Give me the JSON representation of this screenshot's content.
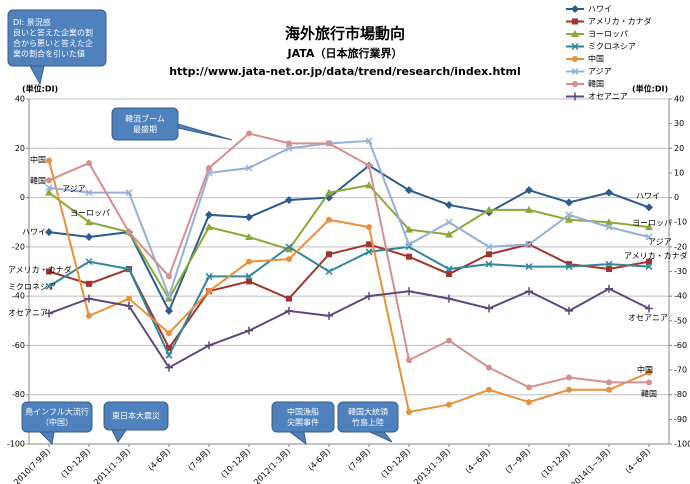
{
  "chart_data": {
    "type": "line",
    "title": "海外旅行市場動向",
    "subtitle": "JATA（日本旅行業界）",
    "source": "http://www.jata-net.or.jp/data/trend/research/index.html",
    "y_label": "(単位:DI)",
    "y2_label": "(単位:DI)",
    "categories": [
      "2010(7-9月)",
      "(10-12月)",
      "2011(1-3月)",
      "(4-6月)",
      "(7-9月)",
      "(10-12月)",
      "2012(1-3月)",
      "(4-6月)",
      "(7-9月)",
      "(10-12月)",
      "2013(1-3月)",
      "(4~6月)",
      "(7~9月)",
      "(10-12月)",
      "2014(1~3月)",
      "(4~6月)"
    ],
    "ylim": [
      -100,
      40
    ],
    "yticks": [
      -100,
      -80,
      -60,
      -40,
      -20,
      0,
      20,
      40
    ],
    "y2lim": [
      -100,
      40
    ],
    "y2ticks": [
      -100,
      -90,
      -80,
      -70,
      -60,
      -50,
      -40,
      -30,
      -20,
      -10,
      0,
      10,
      20,
      30,
      40
    ],
    "grid": true,
    "legend": "top-right",
    "series": [
      {
        "name": "ハワイ",
        "color": "#2c5d8f",
        "marker": "diamond",
        "values": [
          -14,
          -16,
          -14,
          -46,
          -7,
          -8,
          -1,
          0,
          13,
          3,
          -3,
          -6,
          3,
          -2,
          2,
          -4
        ]
      },
      {
        "name": "アメリカ・カナダ",
        "color": "#a3342d",
        "marker": "square",
        "values": [
          -30,
          -35,
          -29,
          -61,
          -38,
          -34,
          -41,
          -23,
          -19,
          -24,
          -31,
          -23,
          -19,
          -27,
          -29,
          -26
        ]
      },
      {
        "name": "ヨーロッパ",
        "color": "#8ba83a",
        "marker": "triangle",
        "values": [
          2,
          -10,
          -14,
          -41,
          -12,
          -16,
          -21,
          2,
          5,
          -13,
          -15,
          -5,
          -5,
          -9,
          -10,
          -12
        ]
      },
      {
        "name": "ミクロネシア",
        "color": "#31869b",
        "marker": "x",
        "values": [
          -36,
          -26,
          -29,
          -64,
          -32,
          -32,
          -20,
          -30,
          -22,
          -20,
          -29,
          -27,
          -28,
          -28,
          -27,
          -28
        ]
      },
      {
        "name": "中国",
        "color": "#e8903a",
        "marker": "circle",
        "values": [
          15,
          -48,
          -41,
          -55,
          -38,
          -26,
          -25,
          -9,
          -12,
          -87,
          -84,
          -78,
          -83,
          -78,
          -78,
          -71
        ]
      },
      {
        "name": "アジア",
        "color": "#95b0d6",
        "marker": "x",
        "values": [
          4,
          2,
          2,
          -40,
          10,
          12,
          20,
          22,
          23,
          -19,
          -10,
          -20,
          -19,
          -7,
          -12,
          -16
        ]
      },
      {
        "name": "韓国",
        "color": "#d4908e",
        "marker": "circle",
        "values": [
          7,
          14,
          -14,
          -32,
          12,
          26,
          22,
          22,
          13,
          -66,
          -58,
          -69,
          -77,
          -73,
          -75,
          -75
        ]
      },
      {
        "name": "オセアニア",
        "color": "#5f477d",
        "marker": "plus",
        "values": [
          -47,
          -41,
          -44,
          -69,
          -60,
          -54,
          -46,
          -48,
          -40,
          -38,
          -41,
          -45,
          -38,
          -46,
          -37,
          -45
        ]
      }
    ],
    "annotations": [
      {
        "lines": [
          "DI: 景況感",
          "良いと答えた企業の割",
          "合から悪いと答えた企",
          "業の割合を引いた値"
        ]
      },
      {
        "lines": [
          "韓流ブーム",
          "最盛期"
        ]
      },
      {
        "lines": [
          "鳥インフル大流行",
          "（中国）"
        ]
      },
      {
        "lines": [
          "東日本大震災"
        ]
      },
      {
        "lines": [
          "中国漁船",
          "尖閣事件"
        ]
      },
      {
        "lines": [
          "韓国大統領",
          "竹島上陸"
        ]
      }
    ]
  }
}
